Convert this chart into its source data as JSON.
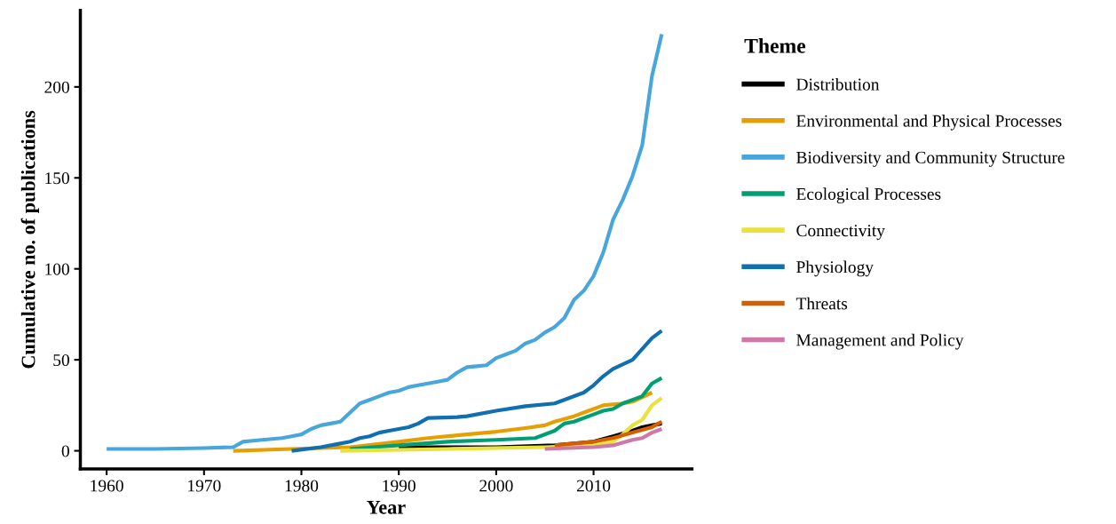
{
  "chart_data": {
    "type": "line",
    "xlabel": "Year",
    "ylabel": "Cumulative no. of publications",
    "legend_title": "Theme",
    "legend": "right",
    "grid": false,
    "line_style": "solid",
    "xlim": [
      1957.3,
      2020.1
    ],
    "ylim": [
      -10,
      242
    ],
    "xticks": [
      1960,
      1970,
      1980,
      1990,
      2000,
      2010
    ],
    "yticks": [
      0,
      50,
      100,
      150,
      200
    ],
    "series": [
      {
        "name": "Distribution",
        "color": "#000000",
        "x": [
          1990,
          2000,
          2006,
          2010,
          2012,
          2014,
          2015,
          2016,
          2017
        ],
        "values": [
          2,
          2,
          3,
          5,
          8,
          11,
          13,
          14,
          15
        ]
      },
      {
        "name": "Environmental and Physical Processes",
        "color": "#e69f00",
        "x": [
          1973,
          1979,
          1985,
          1990,
          1993,
          1996,
          2000,
          2003,
          2005,
          2006,
          2008,
          2009,
          2010,
          2011,
          2013,
          2014,
          2016
        ],
        "values": [
          0,
          1,
          2,
          5,
          7,
          8.5,
          10.5,
          12.5,
          14,
          16,
          19,
          21,
          23,
          25,
          26,
          27,
          32
        ]
      },
      {
        "name": "Biodiversity and Community Structure",
        "color": "#47a6dc",
        "x": [
          1960,
          1965,
          1970,
          1973,
          1974,
          1975,
          1976,
          1977,
          1978,
          1979,
          1980,
          1981,
          1982,
          1983,
          1984,
          1985,
          1986,
          1987,
          1988,
          1989,
          1990,
          1991,
          1992,
          1993,
          1994,
          1995,
          1996,
          1997,
          1998,
          1999,
          2000,
          2001,
          2002,
          2003,
          2004,
          2005,
          2006,
          2007,
          2008,
          2009,
          2010,
          2011,
          2012,
          2013,
          2014,
          2015,
          2016,
          2017
        ],
        "values": [
          1,
          1,
          1.5,
          2,
          5,
          5.5,
          6,
          6.5,
          7,
          8,
          9,
          12,
          14,
          15,
          16,
          21,
          26,
          28,
          30,
          32,
          33,
          35,
          36,
          37,
          38,
          39,
          43,
          46,
          46.5,
          47,
          51,
          53,
          55,
          59,
          61,
          65,
          68,
          73,
          83,
          88,
          96,
          109,
          127,
          138,
          151,
          168,
          206,
          229
        ]
      },
      {
        "name": "Ecological Processes",
        "color": "#009e73",
        "x": [
          1985,
          1990,
          1995,
          2000,
          2004,
          2006,
          2007,
          2008,
          2010,
          2011,
          2012,
          2013,
          2015,
          2016,
          2017
        ],
        "values": [
          1,
          3,
          5,
          6,
          7,
          11,
          15,
          16,
          20,
          22,
          23,
          26,
          30,
          37,
          40
        ]
      },
      {
        "name": "Connectivity",
        "color": "#e8e23c",
        "x": [
          1984,
          1995,
          2005,
          2010,
          2012,
          2013,
          2014,
          2015,
          2016,
          2017
        ],
        "values": [
          0,
          1,
          2,
          3,
          5,
          9,
          14,
          17,
          25,
          29
        ]
      },
      {
        "name": "Physiology",
        "color": "#0f6fb0",
        "x": [
          1979,
          1982,
          1984,
          1985,
          1986,
          1987,
          1988,
          1989,
          1990,
          1991,
          1992,
          1993,
          1996,
          1997,
          2000,
          2003,
          2006,
          2009,
          2010,
          2011,
          2012,
          2014,
          2015,
          2016,
          2017
        ],
        "values": [
          0,
          2,
          4,
          5,
          7,
          8,
          10,
          11,
          12,
          13,
          15,
          18,
          18.5,
          19,
          22,
          24.5,
          26,
          32,
          36,
          41,
          45,
          50,
          56,
          62,
          66
        ]
      },
      {
        "name": "Threats",
        "color": "#d55e00",
        "x": [
          2006,
          2008,
          2010,
          2012,
          2014,
          2016,
          2017
        ],
        "values": [
          3,
          4,
          5,
          7,
          10,
          13,
          16
        ]
      },
      {
        "name": "Management and Policy",
        "color": "#cc79a7",
        "x": [
          2005,
          2010,
          2012,
          2014,
          2015,
          2016,
          2017
        ],
        "values": [
          1,
          2,
          3,
          6,
          7,
          10,
          12
        ]
      }
    ]
  }
}
